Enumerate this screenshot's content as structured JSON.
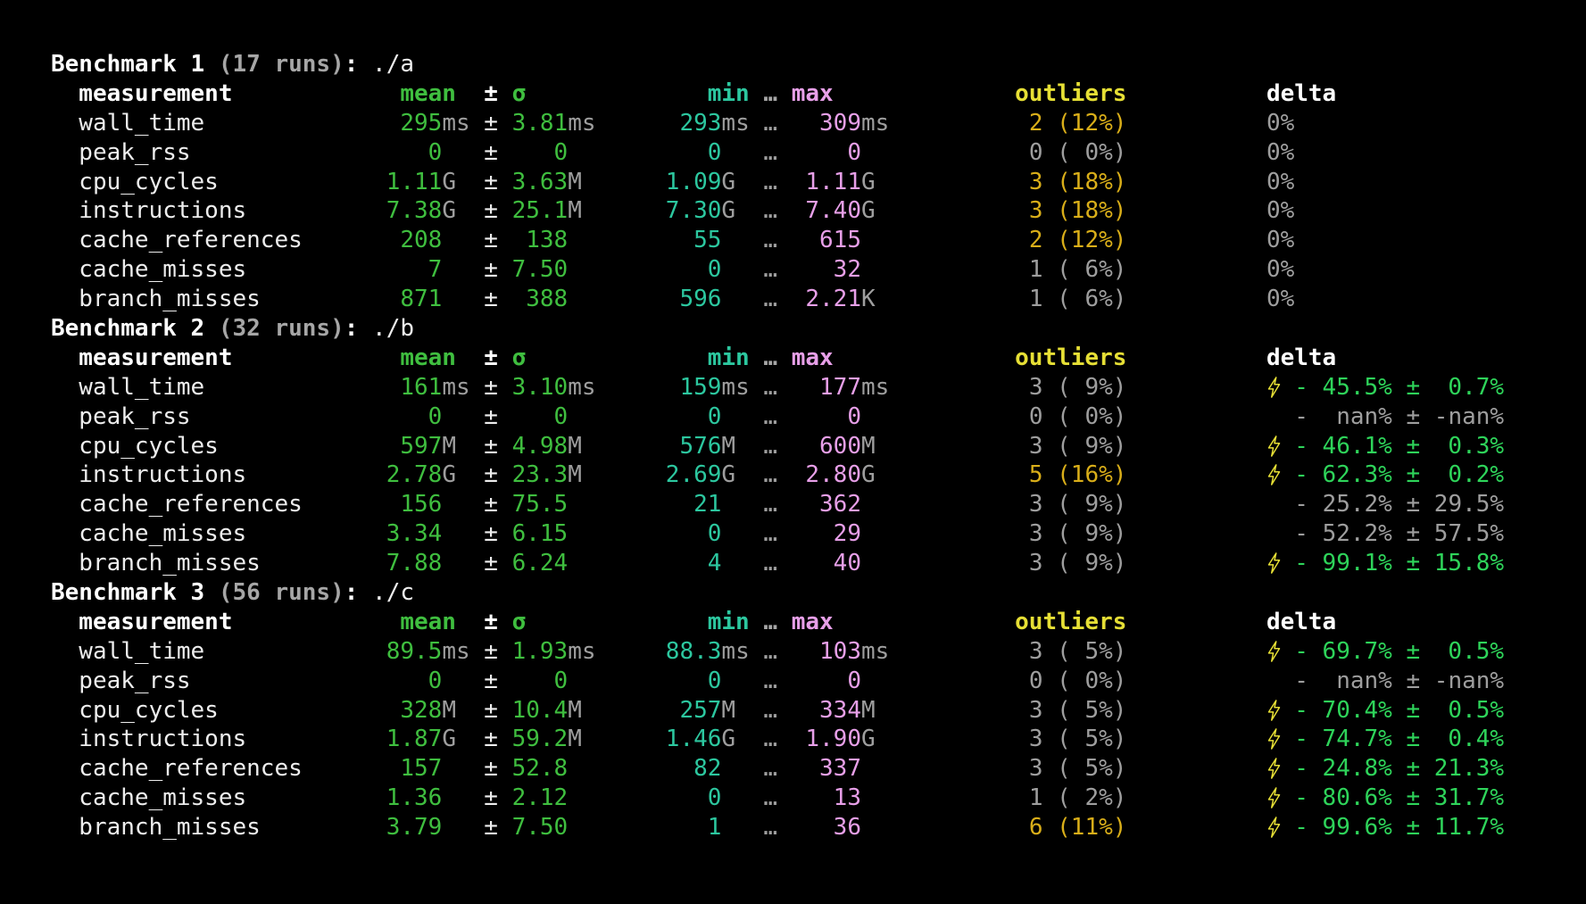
{
  "terminal": {
    "background": "#000000",
    "colors": {
      "text": "#ededed",
      "bold_text": "#ffffff",
      "muted": "#9e9e9e",
      "green": "#3fbe3f",
      "delta_green": "#2ed45a",
      "teal": "#2cc79f",
      "pink": "#e79fe8",
      "yellow": "#e6df35",
      "amber": "#d9ae19"
    },
    "columns": {
      "measurement": "measurement",
      "mean": "mean",
      "plus_minus": "±",
      "sigma": "σ",
      "min": "min",
      "ellipsis": "…",
      "max": "max",
      "outliers": "outliers",
      "delta": "delta"
    },
    "bolt_icon": "lightning-bolt",
    "benchmarks": [
      {
        "title": "Benchmark 1",
        "runs": "(17 runs)",
        "colon": ":",
        "command": "./a",
        "rows": [
          {
            "name": "wall_time",
            "mean": [
              "295",
              "ms"
            ],
            "sigma": [
              "3.81",
              "ms"
            ],
            "min": [
              "293",
              "ms"
            ],
            "max": [
              "309",
              "ms"
            ],
            "outliers": {
              "count": "2",
              "pct": "12",
              "hot": true
            },
            "delta": {
              "kind": "zero",
              "text": "0%"
            }
          },
          {
            "name": "peak_rss",
            "mean": [
              "0",
              ""
            ],
            "sigma": [
              "0",
              ""
            ],
            "min": [
              "0",
              ""
            ],
            "max": [
              "0",
              ""
            ],
            "outliers": {
              "count": "0",
              "pct": "0",
              "hot": false
            },
            "delta": {
              "kind": "zero",
              "text": "0%"
            }
          },
          {
            "name": "cpu_cycles",
            "mean": [
              "1.11",
              "G"
            ],
            "sigma": [
              "3.63",
              "M"
            ],
            "min": [
              "1.09",
              "G"
            ],
            "max": [
              "1.11",
              "G"
            ],
            "outliers": {
              "count": "3",
              "pct": "18",
              "hot": true
            },
            "delta": {
              "kind": "zero",
              "text": "0%"
            }
          },
          {
            "name": "instructions",
            "mean": [
              "7.38",
              "G"
            ],
            "sigma": [
              "25.1",
              "M"
            ],
            "min": [
              "7.30",
              "G"
            ],
            "max": [
              "7.40",
              "G"
            ],
            "outliers": {
              "count": "3",
              "pct": "18",
              "hot": true
            },
            "delta": {
              "kind": "zero",
              "text": "0%"
            }
          },
          {
            "name": "cache_references",
            "mean": [
              "208",
              ""
            ],
            "sigma": [
              "138",
              ""
            ],
            "min": [
              "55",
              ""
            ],
            "max": [
              "615",
              ""
            ],
            "outliers": {
              "count": "2",
              "pct": "12",
              "hot": true
            },
            "delta": {
              "kind": "zero",
              "text": "0%"
            }
          },
          {
            "name": "cache_misses",
            "mean": [
              "7",
              ""
            ],
            "sigma": [
              "7.50",
              ""
            ],
            "min": [
              "0",
              ""
            ],
            "max": [
              "32",
              ""
            ],
            "outliers": {
              "count": "1",
              "pct": "6",
              "hot": false
            },
            "delta": {
              "kind": "zero",
              "text": "0%"
            }
          },
          {
            "name": "branch_misses",
            "mean": [
              "871",
              ""
            ],
            "sigma": [
              "388",
              ""
            ],
            "min": [
              "596",
              ""
            ],
            "max": [
              "2.21",
              "K"
            ],
            "outliers": {
              "count": "1",
              "pct": "6",
              "hot": false
            },
            "delta": {
              "kind": "zero",
              "text": "0%"
            }
          }
        ]
      },
      {
        "title": "Benchmark 2",
        "runs": "(32 runs)",
        "colon": ":",
        "command": "./b",
        "rows": [
          {
            "name": "wall_time",
            "mean": [
              "161",
              "ms"
            ],
            "sigma": [
              "3.10",
              "ms"
            ],
            "min": [
              "159",
              "ms"
            ],
            "max": [
              "177",
              "ms"
            ],
            "outliers": {
              "count": "3",
              "pct": "9",
              "hot": false
            },
            "delta": {
              "kind": "pct",
              "bolt": true,
              "sign": "-",
              "value": "45.5%",
              "err": "0.7%",
              "good": true
            }
          },
          {
            "name": "peak_rss",
            "mean": [
              "0",
              ""
            ],
            "sigma": [
              "0",
              ""
            ],
            "min": [
              "0",
              ""
            ],
            "max": [
              "0",
              ""
            ],
            "outliers": {
              "count": "0",
              "pct": "0",
              "hot": false
            },
            "delta": {
              "kind": "pct",
              "bolt": false,
              "sign": "-",
              "value": "nan%",
              "err": "-nan%",
              "good": false
            }
          },
          {
            "name": "cpu_cycles",
            "mean": [
              "597",
              "M"
            ],
            "sigma": [
              "4.98",
              "M"
            ],
            "min": [
              "576",
              "M"
            ],
            "max": [
              "600",
              "M"
            ],
            "outliers": {
              "count": "3",
              "pct": "9",
              "hot": false
            },
            "delta": {
              "kind": "pct",
              "bolt": true,
              "sign": "-",
              "value": "46.1%",
              "err": "0.3%",
              "good": true
            }
          },
          {
            "name": "instructions",
            "mean": [
              "2.78",
              "G"
            ],
            "sigma": [
              "23.3",
              "M"
            ],
            "min": [
              "2.69",
              "G"
            ],
            "max": [
              "2.80",
              "G"
            ],
            "outliers": {
              "count": "5",
              "pct": "16",
              "hot": true
            },
            "delta": {
              "kind": "pct",
              "bolt": true,
              "sign": "-",
              "value": "62.3%",
              "err": "0.2%",
              "good": true
            }
          },
          {
            "name": "cache_references",
            "mean": [
              "156",
              ""
            ],
            "sigma": [
              "75.5",
              ""
            ],
            "min": [
              "21",
              ""
            ],
            "max": [
              "362",
              ""
            ],
            "outliers": {
              "count": "3",
              "pct": "9",
              "hot": false
            },
            "delta": {
              "kind": "pct",
              "bolt": false,
              "sign": "-",
              "value": "25.2%",
              "err": "29.5%",
              "good": false
            }
          },
          {
            "name": "cache_misses",
            "mean": [
              "3.34",
              ""
            ],
            "sigma": [
              "6.15",
              ""
            ],
            "min": [
              "0",
              ""
            ],
            "max": [
              "29",
              ""
            ],
            "outliers": {
              "count": "3",
              "pct": "9",
              "hot": false
            },
            "delta": {
              "kind": "pct",
              "bolt": false,
              "sign": "-",
              "value": "52.2%",
              "err": "57.5%",
              "good": false
            }
          },
          {
            "name": "branch_misses",
            "mean": [
              "7.88",
              ""
            ],
            "sigma": [
              "6.24",
              ""
            ],
            "min": [
              "4",
              ""
            ],
            "max": [
              "40",
              ""
            ],
            "outliers": {
              "count": "3",
              "pct": "9",
              "hot": false
            },
            "delta": {
              "kind": "pct",
              "bolt": true,
              "sign": "-",
              "value": "99.1%",
              "err": "15.8%",
              "good": true
            }
          }
        ]
      },
      {
        "title": "Benchmark 3",
        "runs": "(56 runs)",
        "colon": ":",
        "command": "./c",
        "rows": [
          {
            "name": "wall_time",
            "mean": [
              "89.5",
              "ms"
            ],
            "sigma": [
              "1.93",
              "ms"
            ],
            "min": [
              "88.3",
              "ms"
            ],
            "max": [
              "103",
              "ms"
            ],
            "outliers": {
              "count": "3",
              "pct": "5",
              "hot": false
            },
            "delta": {
              "kind": "pct",
              "bolt": true,
              "sign": "-",
              "value": "69.7%",
              "err": "0.5%",
              "good": true
            }
          },
          {
            "name": "peak_rss",
            "mean": [
              "0",
              ""
            ],
            "sigma": [
              "0",
              ""
            ],
            "min": [
              "0",
              ""
            ],
            "max": [
              "0",
              ""
            ],
            "outliers": {
              "count": "0",
              "pct": "0",
              "hot": false
            },
            "delta": {
              "kind": "pct",
              "bolt": false,
              "sign": "-",
              "value": "nan%",
              "err": "-nan%",
              "good": false
            }
          },
          {
            "name": "cpu_cycles",
            "mean": [
              "328",
              "M"
            ],
            "sigma": [
              "10.4",
              "M"
            ],
            "min": [
              "257",
              "M"
            ],
            "max": [
              "334",
              "M"
            ],
            "outliers": {
              "count": "3",
              "pct": "5",
              "hot": false
            },
            "delta": {
              "kind": "pct",
              "bolt": true,
              "sign": "-",
              "value": "70.4%",
              "err": "0.5%",
              "good": true
            }
          },
          {
            "name": "instructions",
            "mean": [
              "1.87",
              "G"
            ],
            "sigma": [
              "59.2",
              "M"
            ],
            "min": [
              "1.46",
              "G"
            ],
            "max": [
              "1.90",
              "G"
            ],
            "outliers": {
              "count": "3",
              "pct": "5",
              "hot": false
            },
            "delta": {
              "kind": "pct",
              "bolt": true,
              "sign": "-",
              "value": "74.7%",
              "err": "0.4%",
              "good": true
            }
          },
          {
            "name": "cache_references",
            "mean": [
              "157",
              ""
            ],
            "sigma": [
              "52.8",
              ""
            ],
            "min": [
              "82",
              ""
            ],
            "max": [
              "337",
              ""
            ],
            "outliers": {
              "count": "3",
              "pct": "5",
              "hot": false
            },
            "delta": {
              "kind": "pct",
              "bolt": true,
              "sign": "-",
              "value": "24.8%",
              "err": "21.3%",
              "good": true
            }
          },
          {
            "name": "cache_misses",
            "mean": [
              "1.36",
              ""
            ],
            "sigma": [
              "2.12",
              ""
            ],
            "min": [
              "0",
              ""
            ],
            "max": [
              "13",
              ""
            ],
            "outliers": {
              "count": "1",
              "pct": "2",
              "hot": false
            },
            "delta": {
              "kind": "pct",
              "bolt": true,
              "sign": "-",
              "value": "80.6%",
              "err": "31.7%",
              "good": true
            }
          },
          {
            "name": "branch_misses",
            "mean": [
              "3.79",
              ""
            ],
            "sigma": [
              "7.50",
              ""
            ],
            "min": [
              "1",
              ""
            ],
            "max": [
              "36",
              ""
            ],
            "outliers": {
              "count": "6",
              "pct": "11",
              "hot": true
            },
            "delta": {
              "kind": "pct",
              "bolt": true,
              "sign": "-",
              "value": "99.6%",
              "err": "11.7%",
              "good": true
            }
          }
        ]
      }
    ]
  }
}
